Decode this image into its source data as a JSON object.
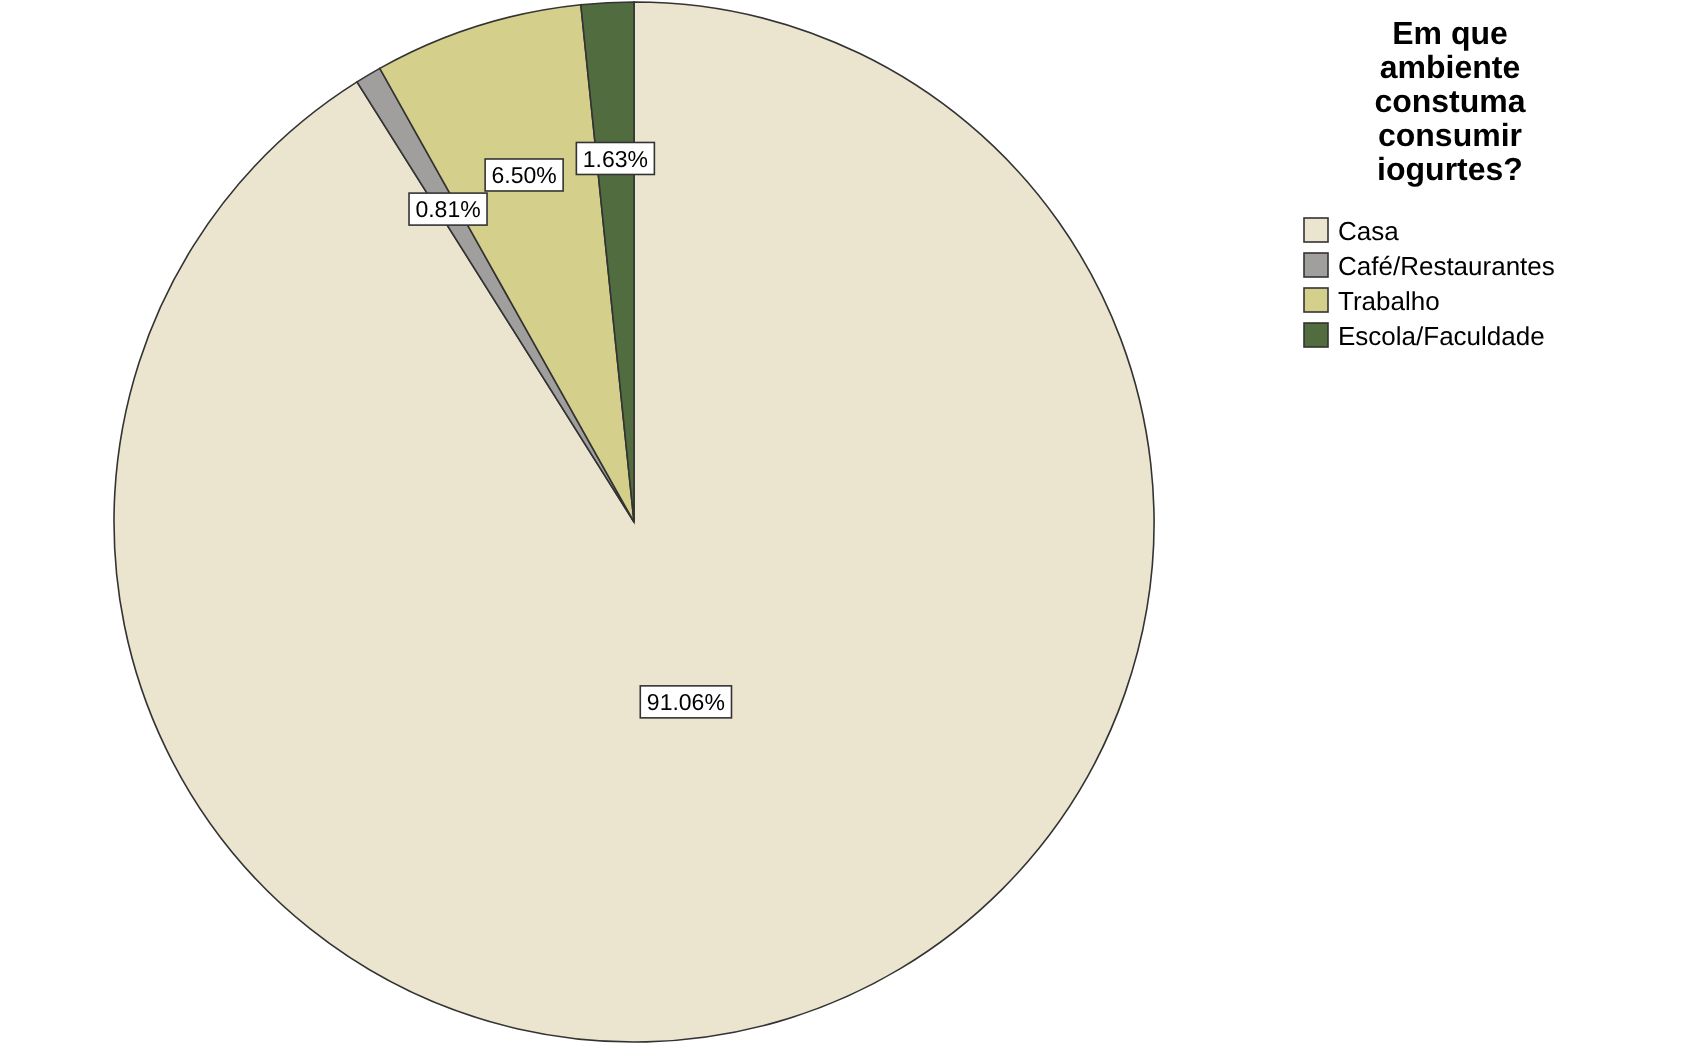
{
  "chart_data": {
    "type": "pie",
    "legend_title": "Em que ambiente constuma consumir iogurtes?",
    "categories": [
      "Casa",
      "Café/Restaurantes",
      "Trabalho",
      "Escola/Faculdade"
    ],
    "values": [
      91.06,
      0.81,
      6.5,
      1.63
    ],
    "colors": [
      "#ebe5cf",
      "#a09f9d",
      "#d4cf8b",
      "#516d3f"
    ],
    "value_labels": [
      "91.06%",
      "0.81%",
      "6.50%",
      "1.63%"
    ],
    "legend": "top right"
  }
}
